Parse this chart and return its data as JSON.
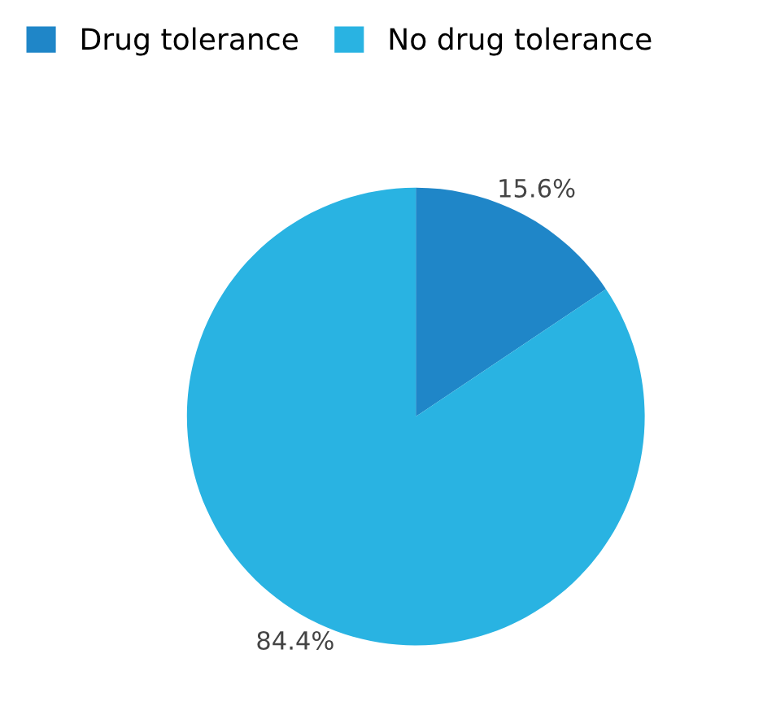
{
  "chart_data": {
    "type": "pie",
    "categories": [
      "Drug tolerance",
      "No drug tolerance"
    ],
    "values": [
      15.6,
      84.4
    ],
    "colors": [
      "#1f86c8",
      "#29b3e2"
    ],
    "value_labels": [
      "15.6%",
      "84.4%"
    ],
    "legend": "top left"
  }
}
